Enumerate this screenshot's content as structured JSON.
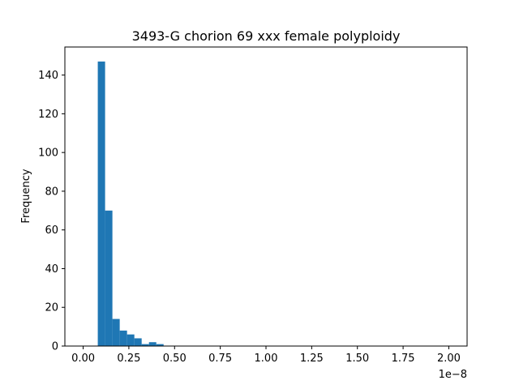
{
  "chart_data": {
    "type": "bar",
    "title": "3493-G chorion 69 xxx female polyploidy",
    "xlabel": "",
    "ylabel": "Frequency",
    "x_offset_label": "1e−8",
    "xlim": [
      -0.1,
      2.1
    ],
    "ylim": [
      0,
      154.5
    ],
    "x_ticks": [
      0.0,
      0.25,
      0.5,
      0.75,
      1.0,
      1.25,
      1.5,
      1.75,
      2.0
    ],
    "x_tick_labels": [
      "0.00",
      "0.25",
      "0.50",
      "0.75",
      "1.00",
      "1.25",
      "1.50",
      "1.75",
      "2.00"
    ],
    "y_ticks": [
      0,
      20,
      40,
      60,
      80,
      100,
      120,
      140
    ],
    "y_tick_labels": [
      "0",
      "20",
      "40",
      "60",
      "80",
      "100",
      "120",
      "140"
    ],
    "bin_width": 0.04,
    "bin_start": 0.0,
    "bins": 50,
    "values": [
      0,
      0,
      147,
      70,
      14,
      8,
      6,
      4,
      1,
      2,
      1,
      0,
      0,
      0,
      0,
      0,
      0,
      0,
      0,
      0,
      0,
      0,
      0,
      0,
      0,
      0,
      0,
      0,
      0,
      0,
      0,
      0,
      0,
      0,
      0,
      0,
      0,
      0,
      0,
      0,
      0,
      0,
      0,
      0,
      0,
      0,
      0,
      0,
      0,
      0
    ],
    "bar_color": "#1f77b4",
    "grid": false
  }
}
